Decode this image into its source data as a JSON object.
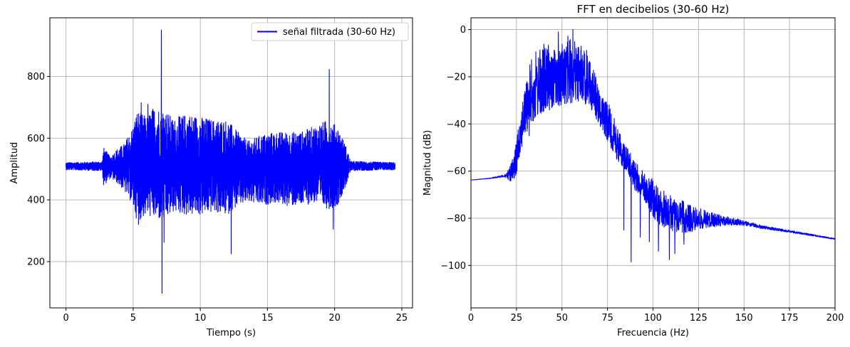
{
  "chart_data": [
    {
      "type": "line",
      "title": "",
      "xlabel": "Tiempo (s)",
      "ylabel": "Amplitud",
      "xlim": [
        -1.2,
        25.8
      ],
      "ylim": [
        50,
        990
      ],
      "xticks": [
        0,
        5,
        10,
        15,
        20,
        25
      ],
      "yticks": [
        200,
        400,
        600,
        800
      ],
      "grid": true,
      "legend": "top-right",
      "series": [
        {
          "name": "señal filtrada (30-60 Hz)",
          "color": "#0000ff",
          "baseline": 510,
          "envelope": [
            {
              "t": 0.0,
              "lo": 497,
              "hi": 521
            },
            {
              "t": 2.7,
              "lo": 494,
              "hi": 524
            },
            {
              "t": 2.8,
              "lo": 445,
              "hi": 570
            },
            {
              "t": 3.3,
              "lo": 470,
              "hi": 540
            },
            {
              "t": 3.8,
              "lo": 455,
              "hi": 565
            },
            {
              "t": 4.3,
              "lo": 430,
              "hi": 580
            },
            {
              "t": 4.9,
              "lo": 390,
              "hi": 630
            },
            {
              "t": 5.3,
              "lo": 330,
              "hi": 690
            },
            {
              "t": 6.0,
              "lo": 350,
              "hi": 670
            },
            {
              "t": 6.5,
              "lo": 340,
              "hi": 700
            },
            {
              "t": 7.3,
              "lo": 330,
              "hi": 700
            },
            {
              "t": 8.0,
              "lo": 360,
              "hi": 660
            },
            {
              "t": 9.0,
              "lo": 350,
              "hi": 680
            },
            {
              "t": 10.0,
              "lo": 350,
              "hi": 670
            },
            {
              "t": 11.0,
              "lo": 360,
              "hi": 660
            },
            {
              "t": 12.0,
              "lo": 350,
              "hi": 660
            },
            {
              "t": 12.8,
              "lo": 380,
              "hi": 620
            },
            {
              "t": 13.6,
              "lo": 390,
              "hi": 590
            },
            {
              "t": 14.5,
              "lo": 380,
              "hi": 610
            },
            {
              "t": 15.5,
              "lo": 390,
              "hi": 620
            },
            {
              "t": 16.5,
              "lo": 380,
              "hi": 620
            },
            {
              "t": 17.5,
              "lo": 380,
              "hi": 620
            },
            {
              "t": 18.5,
              "lo": 390,
              "hi": 640
            },
            {
              "t": 19.5,
              "lo": 370,
              "hi": 660
            },
            {
              "t": 20.2,
              "lo": 380,
              "hi": 640
            },
            {
              "t": 20.8,
              "lo": 440,
              "hi": 580
            },
            {
              "t": 21.2,
              "lo": 494,
              "hi": 525
            },
            {
              "t": 24.5,
              "lo": 497,
              "hi": 521
            }
          ],
          "spikes": [
            {
              "t": 7.1,
              "v": 950
            },
            {
              "t": 7.15,
              "v": 97
            },
            {
              "t": 7.3,
              "v": 262
            },
            {
              "t": 12.3,
              "v": 225
            },
            {
              "t": 19.6,
              "v": 823
            },
            {
              "t": 19.9,
              "v": 305
            },
            {
              "t": 6.1,
              "v": 710
            },
            {
              "t": 5.6,
              "v": 715
            },
            {
              "t": 8.4,
              "v": 670
            },
            {
              "t": 5.4,
              "v": 320
            }
          ]
        }
      ]
    },
    {
      "type": "line",
      "title": "FFT en decibelios (30-60 Hz)",
      "xlabel": "Frecuencia (Hz)",
      "ylabel": "Magnitud (dB)",
      "xlim": [
        0,
        200
      ],
      "ylim": [
        -118,
        5
      ],
      "xticks": [
        0,
        25,
        50,
        75,
        100,
        125,
        150,
        175,
        200
      ],
      "yticks": [
        0,
        -20,
        -40,
        -60,
        -80,
        -100
      ],
      "grid": true,
      "series": [
        {
          "name": "",
          "color": "#0000ff",
          "envelope": [
            {
              "f": 0,
              "lo": -63.8,
              "hi": -63.8
            },
            {
              "f": 10,
              "lo": -63.2,
              "hi": -63.0
            },
            {
              "f": 18,
              "lo": -62.5,
              "hi": -61.5
            },
            {
              "f": 21,
              "lo": -64,
              "hi": -59
            },
            {
              "f": 24,
              "lo": -66,
              "hi": -52
            },
            {
              "f": 27,
              "lo": -52,
              "hi": -33
            },
            {
              "f": 30,
              "lo": -45,
              "hi": -22
            },
            {
              "f": 33,
              "lo": -40,
              "hi": -12
            },
            {
              "f": 36,
              "lo": -38,
              "hi": -8
            },
            {
              "f": 40,
              "lo": -36,
              "hi": -6
            },
            {
              "f": 45,
              "lo": -33,
              "hi": -5
            },
            {
              "f": 50,
              "lo": -33,
              "hi": -3
            },
            {
              "f": 55,
              "lo": -32,
              "hi": -2
            },
            {
              "f": 60,
              "lo": -30,
              "hi": -5
            },
            {
              "f": 65,
              "lo": -33,
              "hi": -10
            },
            {
              "f": 70,
              "lo": -40,
              "hi": -22
            },
            {
              "f": 75,
              "lo": -47,
              "hi": -30
            },
            {
              "f": 80,
              "lo": -55,
              "hi": -40
            },
            {
              "f": 85,
              "lo": -60,
              "hi": -48
            },
            {
              "f": 90,
              "lo": -68,
              "hi": -55
            },
            {
              "f": 95,
              "lo": -72,
              "hi": -60
            },
            {
              "f": 100,
              "lo": -80,
              "hi": -63
            },
            {
              "f": 105,
              "lo": -84,
              "hi": -68
            },
            {
              "f": 110,
              "lo": -86,
              "hi": -70
            },
            {
              "f": 115,
              "lo": -86,
              "hi": -72
            },
            {
              "f": 120,
              "lo": -86,
              "hi": -74
            },
            {
              "f": 130,
              "lo": -84,
              "hi": -77
            },
            {
              "f": 140,
              "lo": -83,
              "hi": -79
            },
            {
              "f": 150,
              "lo": -83,
              "hi": -81
            },
            {
              "f": 160,
              "lo": -84.5,
              "hi": -83
            },
            {
              "f": 175,
              "lo": -86,
              "hi": -85
            },
            {
              "f": 200,
              "lo": -89,
              "hi": -88.5
            }
          ],
          "spikes": [
            {
              "f": 56,
              "v": 0
            },
            {
              "f": 48,
              "v": -1
            },
            {
              "f": 88,
              "v": -98.5
            },
            {
              "f": 109,
              "v": -97.5
            },
            {
              "f": 84,
              "v": -85
            },
            {
              "f": 93,
              "v": -88
            },
            {
              "f": 103,
              "v": -94
            },
            {
              "f": 112,
              "v": -95
            },
            {
              "f": 117,
              "v": -91
            },
            {
              "f": 98,
              "v": -90
            },
            {
              "f": 27,
              "v": -52
            },
            {
              "f": 32,
              "v": -45
            }
          ]
        }
      ]
    }
  ]
}
